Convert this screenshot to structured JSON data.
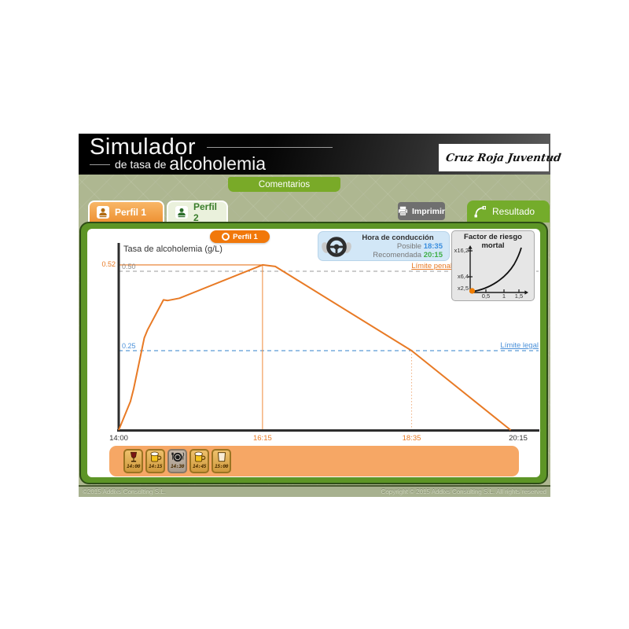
{
  "header": {
    "title_main": "Simulador",
    "title_sub_prefix": "de tasa de",
    "title_sub_emphasis": "alcoholemia",
    "logo_text": "Cruz Roja Juventud"
  },
  "toolbar": {
    "comments_label": "Comentarios",
    "print_label": "Imprimir",
    "result_label": "Resultado"
  },
  "tabs": [
    {
      "label": "Perfil 1",
      "active": true
    },
    {
      "label": "Perfil 2",
      "active": false
    }
  ],
  "result_panel": {
    "profile_badge": "Perfil 1",
    "driving_box": {
      "title": "Hora de conducción",
      "possible_label": "Posible",
      "possible_value": "18:35",
      "recommended_label": "Recomendada",
      "recommended_value": "20:15"
    },
    "risk_box": {
      "title": "Factor de riesgo mortal",
      "y_ticks": [
        "x16,2",
        "x6,4",
        "x2,5"
      ],
      "x_ticks": [
        "0,5",
        "1",
        "1,5"
      ]
    },
    "drinks": [
      {
        "icon": "wine-glass-icon",
        "time": "14:00"
      },
      {
        "icon": "beer-mug-icon",
        "time": "14:15"
      },
      {
        "icon": "food-plate-icon",
        "time": "14:30"
      },
      {
        "icon": "beer-mug-icon",
        "time": "14:45"
      },
      {
        "icon": "tall-glass-icon",
        "time": "15:00"
      }
    ]
  },
  "chart_data": {
    "type": "line",
    "title": "Tasa de alcoholemia (g/L)",
    "x_ticks": [
      {
        "label": "14:00",
        "minutes": 0,
        "highlight": false
      },
      {
        "label": "16:15",
        "minutes": 135,
        "highlight": true
      },
      {
        "label": "18:35",
        "minutes": 275,
        "highlight": true
      },
      {
        "label": "20:15",
        "minutes": 375,
        "highlight": false
      }
    ],
    "y_labels": [
      {
        "text": "0.52",
        "value": 0.52,
        "side": "left",
        "color": "#e87a25"
      },
      {
        "text": "0.50",
        "value": 0.5,
        "side": "right",
        "color": "#8a8a8a"
      },
      {
        "text": "0.25",
        "value": 0.25,
        "side": "right",
        "color": "#4a90d9"
      }
    ],
    "series": [
      {
        "name": "Perfil 1",
        "color": "#e87a25",
        "points": [
          [
            0,
            0
          ],
          [
            11,
            0.09
          ],
          [
            14,
            0.13
          ],
          [
            24,
            0.29
          ],
          [
            27,
            0.315
          ],
          [
            42,
            0.41
          ],
          [
            46,
            0.408
          ],
          [
            57,
            0.415
          ],
          [
            135,
            0.52
          ],
          [
            147,
            0.515
          ],
          [
            275,
            0.25
          ],
          [
            368,
            0
          ]
        ]
      }
    ],
    "peak": {
      "minutes": 135,
      "value": 0.52,
      "time": "16:15"
    },
    "legal_limit": {
      "value": 0.25,
      "label": "Límite legal",
      "color": "#4a90d9",
      "cross_minutes": 275
    },
    "penal_limit": {
      "value": 0.5,
      "label": "Límite penal",
      "color": "#e87a25"
    },
    "xlim_minutes": [
      0,
      375
    ],
    "ylim": [
      0,
      0.55
    ],
    "grid": false,
    "legend": false
  },
  "footer": {
    "left": "©2015 Addixs Consulting S.L.",
    "right": "Copyright © 2015 Addixs Consulting S.L. All rights reserved"
  },
  "colors": {
    "accent_green": "#74a82c",
    "panel_green": "#5d9526",
    "tab_orange": "#f09a3e",
    "badge_orange": "#f1780a",
    "curve_orange": "#e87a25",
    "limit_blue": "#4a90d9",
    "time_blue": "#3b8ede",
    "time_green": "#3faf46",
    "bar_orange": "#f6a765"
  }
}
